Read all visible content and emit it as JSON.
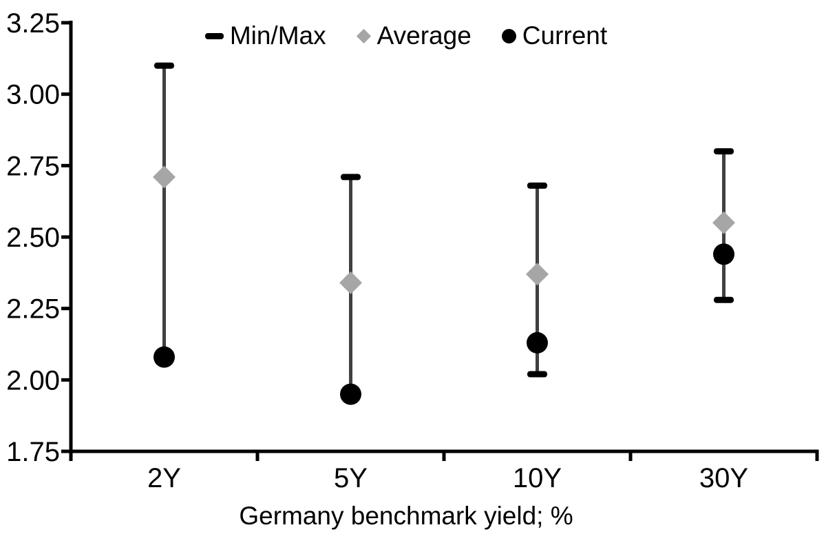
{
  "chart_data": {
    "type": "scatter",
    "subtype": "min-max-range",
    "title": "",
    "xlabel": "Germany benchmark yield; %",
    "ylabel": "",
    "categories": [
      "2Y",
      "5Y",
      "10Y",
      "30Y"
    ],
    "series": [
      {
        "name": "Min/Max",
        "type": "range",
        "marker": "dash",
        "color": "#000000",
        "line_color": "#404040",
        "max": [
          3.1,
          2.71,
          2.68,
          2.8
        ],
        "min": [
          2.08,
          1.95,
          2.02,
          2.28
        ]
      },
      {
        "name": "Average",
        "type": "points",
        "marker": "diamond",
        "color": "#a6a6a6",
        "values": [
          2.71,
          2.34,
          2.37,
          2.55
        ]
      },
      {
        "name": "Current",
        "type": "points",
        "marker": "circle",
        "color": "#000000",
        "values": [
          2.08,
          1.95,
          2.13,
          2.44
        ]
      }
    ],
    "ylim": [
      1.75,
      3.25
    ],
    "ytick_step": 0.25,
    "yticks": [
      "3.25",
      "3.00",
      "2.75",
      "2.50",
      "2.25",
      "2.00",
      "1.75"
    ],
    "grid": false,
    "legend_position": "top-center",
    "axis_color": "#000000",
    "background": "#ffffff"
  }
}
